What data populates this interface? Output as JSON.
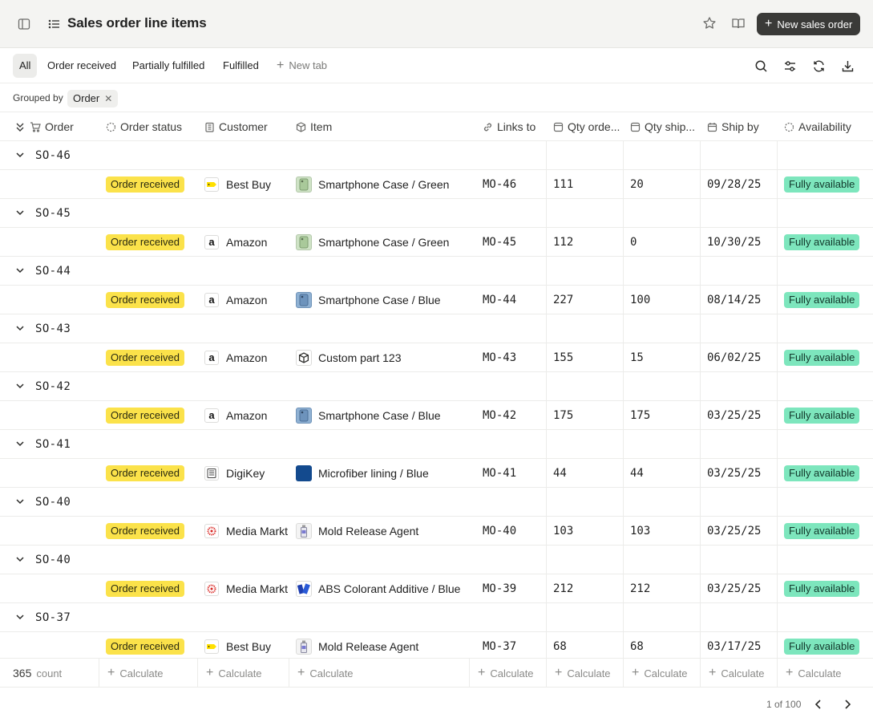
{
  "header": {
    "title": "Sales order line items",
    "new_button_label": "New sales order"
  },
  "tabs": {
    "items": [
      {
        "label": "All",
        "active": true
      },
      {
        "label": "Order received",
        "active": false
      },
      {
        "label": "Partially fulfilled",
        "active": false
      },
      {
        "label": "Fulfilled",
        "active": false
      }
    ],
    "new_tab_label": "New tab"
  },
  "grouping": {
    "label": "Grouped by",
    "chip": "Order"
  },
  "columns": {
    "order": "Order",
    "order_status": "Order status",
    "customer": "Customer",
    "item": "Item",
    "links_to": "Links to",
    "qty_ordered": "Qty orde...",
    "qty_shipped": "Qty ship...",
    "ship_by": "Ship by",
    "availability": "Availability"
  },
  "groups": [
    {
      "order": "SO-46",
      "status": "Order received",
      "customer": "Best Buy",
      "customer_logo": "bestbuy",
      "item": "Smartphone Case / Green",
      "item_thumb": "green-case",
      "links_to": "MO-46",
      "qty_ordered": "111",
      "qty_shipped": "20",
      "ship_by": "09/28/25",
      "availability": "Fully available"
    },
    {
      "order": "SO-45",
      "status": "Order received",
      "customer": "Amazon",
      "customer_logo": "amazon",
      "item": "Smartphone Case / Green",
      "item_thumb": "green-case",
      "links_to": "MO-45",
      "qty_ordered": "112",
      "qty_shipped": "0",
      "ship_by": "10/30/25",
      "availability": "Fully available"
    },
    {
      "order": "SO-44",
      "status": "Order received",
      "customer": "Amazon",
      "customer_logo": "amazon",
      "item": "Smartphone Case / Blue",
      "item_thumb": "blue-case",
      "links_to": "MO-44",
      "qty_ordered": "227",
      "qty_shipped": "100",
      "ship_by": "08/14/25",
      "availability": "Fully available"
    },
    {
      "order": "SO-43",
      "status": "Order received",
      "customer": "Amazon",
      "customer_logo": "amazon",
      "item": "Custom part 123",
      "item_thumb": "box",
      "links_to": "MO-43",
      "qty_ordered": "155",
      "qty_shipped": "15",
      "ship_by": "06/02/25",
      "availability": "Fully available"
    },
    {
      "order": "SO-42",
      "status": "Order received",
      "customer": "Amazon",
      "customer_logo": "amazon",
      "item": "Smartphone Case / Blue",
      "item_thumb": "blue-case",
      "links_to": "MO-42",
      "qty_ordered": "175",
      "qty_shipped": "175",
      "ship_by": "03/25/25",
      "availability": "Fully available"
    },
    {
      "order": "SO-41",
      "status": "Order received",
      "customer": "DigiKey",
      "customer_logo": "digikey",
      "item": "Microfiber lining / Blue",
      "item_thumb": "blue-square",
      "links_to": "MO-41",
      "qty_ordered": "44",
      "qty_shipped": "44",
      "ship_by": "03/25/25",
      "availability": "Fully available"
    },
    {
      "order": "SO-40",
      "status": "Order received",
      "customer": "Media Markt",
      "customer_logo": "mediamarkt",
      "item": "Mold Release Agent",
      "item_thumb": "bottle",
      "links_to": "MO-40",
      "qty_ordered": "103",
      "qty_shipped": "103",
      "ship_by": "03/25/25",
      "availability": "Fully available"
    },
    {
      "order": "SO-40",
      "status": "Order received",
      "customer": "Media Markt",
      "customer_logo": "mediamarkt",
      "item": "ABS Colorant Additive / Blue",
      "item_thumb": "colorant",
      "links_to": "MO-39",
      "qty_ordered": "212",
      "qty_shipped": "212",
      "ship_by": "03/25/25",
      "availability": "Fully available"
    },
    {
      "order": "SO-37",
      "status": "Order received",
      "customer": "Best Buy",
      "customer_logo": "bestbuy",
      "item": "Mold Release Agent",
      "item_thumb": "bottle",
      "links_to": "MO-37",
      "qty_ordered": "68",
      "qty_shipped": "68",
      "ship_by": "03/17/25",
      "availability": "Fully available"
    }
  ],
  "footer": {
    "count_value": "365",
    "count_label": "count",
    "calculate_label": "Calculate"
  },
  "pagination": {
    "text": "1 of 100"
  },
  "colors": {
    "status_badge": "#fbe24a",
    "availability_badge": "#7de6bd",
    "primary_button": "#3a3a38"
  }
}
